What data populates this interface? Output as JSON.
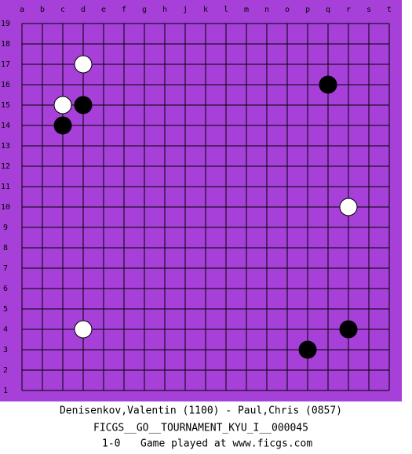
{
  "board": {
    "columns": [
      "a",
      "b",
      "c",
      "d",
      "e",
      "f",
      "g",
      "h",
      "j",
      "k",
      "l",
      "m",
      "n",
      "o",
      "p",
      "q",
      "r",
      "s",
      "t"
    ],
    "rows": [
      19,
      18,
      17,
      16,
      15,
      14,
      13,
      12,
      11,
      10,
      9,
      8,
      7,
      6,
      5,
      4,
      3,
      2,
      1
    ],
    "stones": [
      {
        "color": "white",
        "col": "d",
        "row": 17
      },
      {
        "color": "black",
        "col": "q",
        "row": 16
      },
      {
        "color": "white",
        "col": "c",
        "row": 15
      },
      {
        "color": "black",
        "col": "d",
        "row": 15
      },
      {
        "color": "black",
        "col": "c",
        "row": 14
      },
      {
        "color": "white",
        "col": "r",
        "row": 10
      },
      {
        "color": "white",
        "col": "d",
        "row": 4
      },
      {
        "color": "black",
        "col": "r",
        "row": 4
      },
      {
        "color": "black",
        "col": "p",
        "row": 3
      }
    ]
  },
  "footer": {
    "players": "Denisenkov,Valentin (1100) - Paul,Chris (0857)",
    "event": "FICGS__GO__TOURNAMENT_KYU_I__000045",
    "result": "1-0",
    "note": "Game played at www.ficgs.com"
  }
}
